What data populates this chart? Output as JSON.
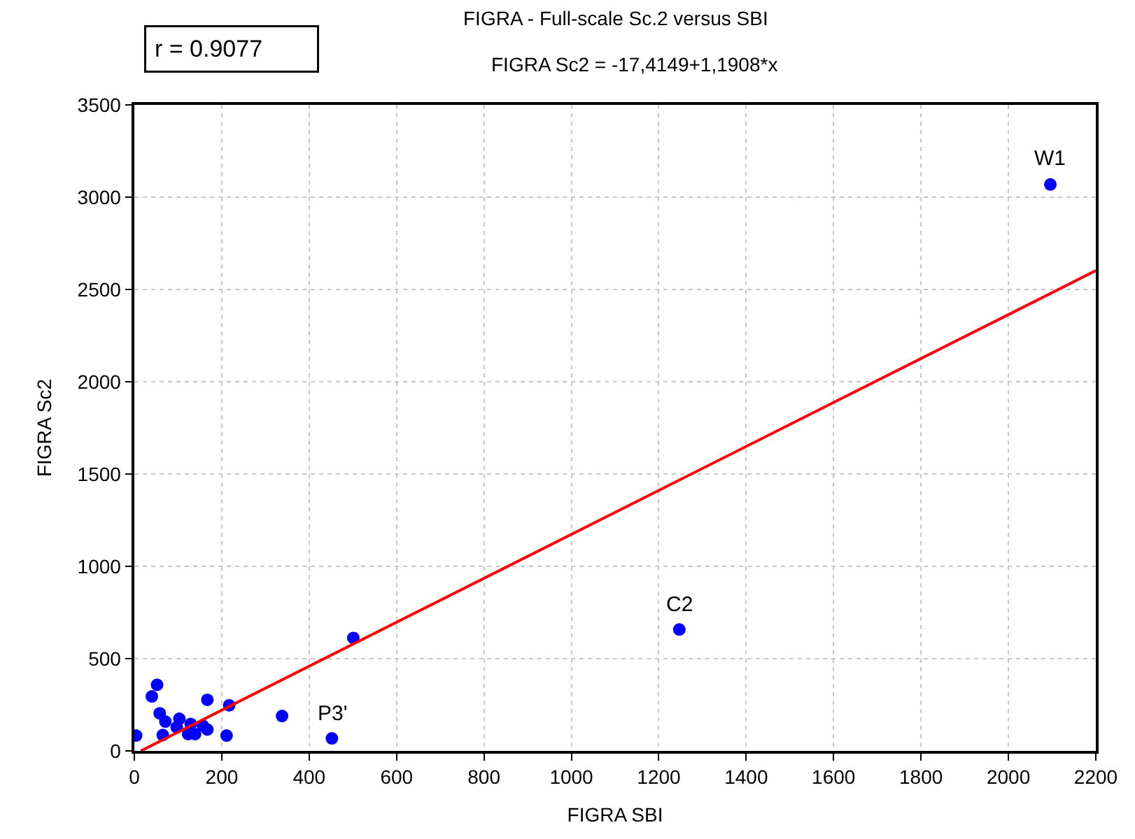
{
  "chart_data": {
    "type": "scatter",
    "title": "FIGRA - Full-scale Sc.2 versus SBI",
    "subtitle": "FIGRA Sc2 = -17,4149+1,1908*x",
    "xlabel": "FIGRA SBI",
    "ylabel": "FIGRA Sc2",
    "series": [
      {
        "color": "#0000ff",
        "marker": "circle",
        "x": [
          4,
          52,
          40,
          58,
          71,
          65,
          103,
          97,
          129,
          123,
          139,
          157,
          167,
          167,
          211,
          217,
          338,
          452,
          501,
          2096,
          1247
        ],
        "values": [
          83,
          358,
          295,
          204,
          159,
          86,
          174,
          128,
          146,
          91,
          91,
          136,
          116,
          277,
          83,
          247,
          189,
          68,
          612,
          3069,
          658
        ]
      },
      {
        "type": "line",
        "color": "#ff0000",
        "marker": "none",
        "x": [
          14.6,
          2200
        ],
        "values": [
          0,
          2602
        ]
      }
    ],
    "annotations": [
      "r = 0.9077",
      {
        "text": "W1",
        "x": 2096,
        "y": 3069
      },
      {
        "text": "C2",
        "x": 1247,
        "y": 658
      },
      {
        "text": "P3'",
        "x": 452,
        "y": 68
      }
    ],
    "xlim": [
      0,
      2200
    ],
    "xticks": [
      0,
      200,
      400,
      600,
      800,
      1000,
      1200,
      1400,
      1600,
      1800,
      2000,
      2200
    ],
    "ylim": [
      0,
      3500
    ],
    "yticks": [
      0,
      500,
      1000,
      1500,
      2000,
      2500,
      3000,
      3500
    ],
    "grid": true,
    "legend": false
  }
}
